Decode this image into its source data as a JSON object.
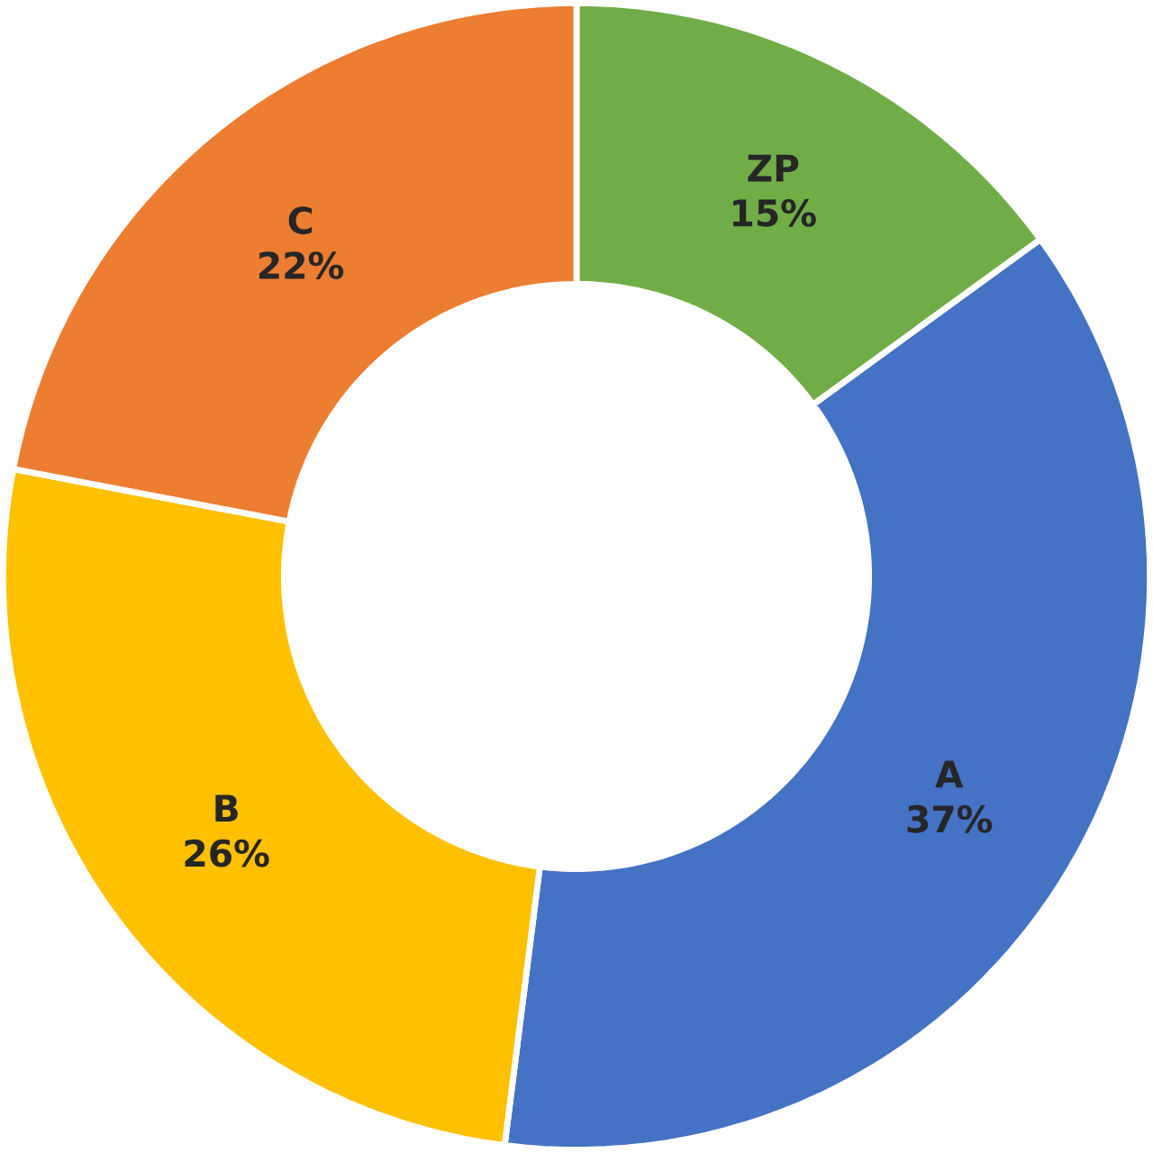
{
  "chart_data": {
    "type": "donut",
    "categories": [
      "ZP",
      "A",
      "B",
      "C"
    ],
    "values": [
      15,
      37,
      26,
      22
    ],
    "value_labels": [
      "15%",
      "37%",
      "26%",
      "22%"
    ],
    "colors": [
      "#70ad47",
      "#4472c4",
      "#ffc000",
      "#ed7d31"
    ]
  }
}
